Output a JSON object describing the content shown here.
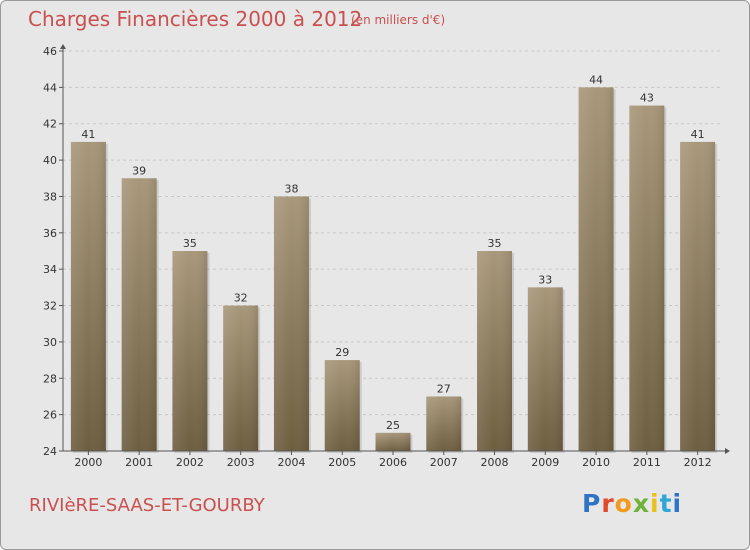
{
  "header": {
    "title": "Charges Financières 2000 à 2012",
    "subtitle": "(en milliers d'€)"
  },
  "footer": {
    "commune": "RIVIèRE-SAAS-ET-GOURBY",
    "logo_text": "Proxiti"
  },
  "colors": {
    "title": "#c9504f",
    "bar_top": "#a8977a",
    "bar_bottom": "#6e5e40",
    "background": "#e7e7e7",
    "plot_background": "#e7e7e7",
    "gridline": "#c8c8c8",
    "logo": [
      "#2f74c4",
      "#e04a2a",
      "#f29a1e",
      "#6fb23a",
      "#e8c21c",
      "#2ea6d8"
    ]
  },
  "chart_data": {
    "type": "bar",
    "title": "Charges Financières 2000 à 2012",
    "subtitle": "(en milliers d'€)",
    "categories": [
      "2000",
      "2001",
      "2002",
      "2003",
      "2004",
      "2005",
      "2006",
      "2007",
      "2008",
      "2009",
      "2010",
      "2011",
      "2012"
    ],
    "values": [
      41,
      39,
      35,
      32,
      38,
      29,
      25,
      27,
      35,
      33,
      44,
      43,
      41
    ],
    "ylim": [
      24,
      46
    ],
    "yticks": [
      24,
      26,
      28,
      30,
      32,
      34,
      36,
      38,
      40,
      42,
      44,
      46
    ],
    "xlabel": "",
    "ylabel": "",
    "grid": "horizontal dashed",
    "legend": "none",
    "data_labels": true
  }
}
